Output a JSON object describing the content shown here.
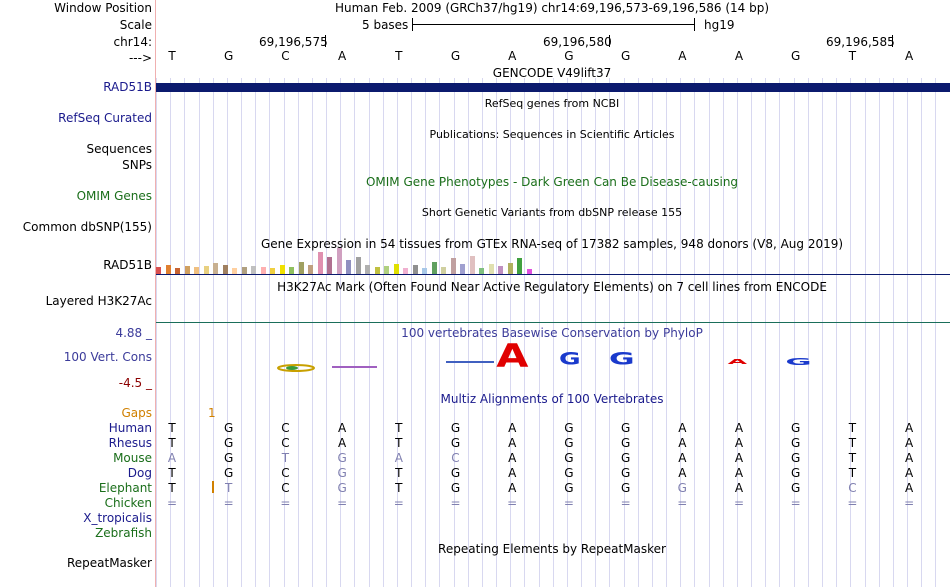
{
  "labels": {
    "window_position": "Window Position",
    "scale": "Scale",
    "chrom": "chr14:",
    "arrow": "--->",
    "rad51b_gene": "RAD51B",
    "refseq": "RefSeq Curated",
    "sequences": "Sequences",
    "snps": "SNPs",
    "omim": "OMIM Genes",
    "dbsnp": "Common dbSNP(155)",
    "rad51b_gtex": "RAD51B",
    "h3k27ac": "Layered H3K27Ac",
    "phylop_max": "4.88 _",
    "cons_track": "100 Vert. Cons",
    "phylop_min": "-4.5 _",
    "gaps": "Gaps",
    "repeatmasker": "RepeatMasker"
  },
  "header": {
    "position_text": "Human Feb. 2009 (GRCh37/hg19)    chr14:69,196,573-69,196,586 (14 bp)",
    "scale_text": "5 bases",
    "assembly": "hg19",
    "coords": [
      "69,196,575",
      "69,196,580",
      "69,196,585"
    ]
  },
  "bases": [
    "T",
    "G",
    "C",
    "A",
    "T",
    "G",
    "A",
    "G",
    "G",
    "A",
    "A",
    "G",
    "T",
    "A"
  ],
  "tracks": {
    "gencode": "GENCODE V49lift37",
    "refseq": "RefSeq genes from NCBI",
    "publications": "Publications: Sequences in Scientific Articles",
    "omim": "OMIM Gene Phenotypes - Dark Green Can Be Disease-causing",
    "dbsnp": "Short Genetic Variants from dbSNP release 155",
    "gtex": "Gene Expression in 54 tissues from GTEx RNA-seq of 17382 samples, 948 donors (V8, Aug 2019)",
    "h3k27ac": "H3K27Ac Mark (Often Found Near Active Regulatory Elements) on 7 cell lines from ENCODE",
    "phylop": "100 vertebrates Basewise Conservation by PhyloP",
    "multiz": "Multiz Alignments of 100 Vertebrates",
    "repeat": "Repeating Elements by RepeatMasker"
  },
  "gap_value": "1",
  "logo_letters": [
    "A",
    "G",
    "G",
    "A",
    "G"
  ],
  "species": [
    {
      "name": "Human",
      "bases": [
        "T",
        "G",
        "C",
        "A",
        "T",
        "G",
        "A",
        "G",
        "G",
        "A",
        "A",
        "G",
        "T",
        "A"
      ]
    },
    {
      "name": "Rhesus",
      "bases": [
        "T",
        "G",
        "C",
        "A",
        "T",
        "G",
        "A",
        "G",
        "G",
        "A",
        "A",
        "G",
        "T",
        "A"
      ]
    },
    {
      "name": "Mouse",
      "bases": [
        "A",
        "G",
        "T",
        "G",
        "A",
        "C",
        "A",
        "G",
        "G",
        "A",
        "A",
        "G",
        "T",
        "A"
      ]
    },
    {
      "name": "Dog",
      "bases": [
        "T",
        "G",
        "C",
        "G",
        "T",
        "G",
        "A",
        "G",
        "G",
        "A",
        "A",
        "G",
        "T",
        "A"
      ]
    },
    {
      "name": "Elephant",
      "bases": [
        "T",
        "T",
        "C",
        "G",
        "T",
        "G",
        "A",
        "G",
        "G",
        "G",
        "A",
        "G",
        "C",
        "A"
      ]
    },
    {
      "name": "Chicken",
      "bases": [
        "=",
        "=",
        "=",
        "=",
        "=",
        "=",
        "=",
        "=",
        "=",
        "=",
        "=",
        "=",
        "=",
        "="
      ]
    },
    {
      "name": "X_tropicalis",
      "bases": []
    },
    {
      "name": "Zebrafish",
      "bases": []
    }
  ],
  "colors": {
    "navy": "#0b1a6e",
    "label_blue": "#1a1a8c",
    "omim_green": "#1a6e1a",
    "gaps_orange": "#d08000",
    "phylop_blue": "#3b3b9a",
    "phylop_red": "#8b0000"
  }
}
